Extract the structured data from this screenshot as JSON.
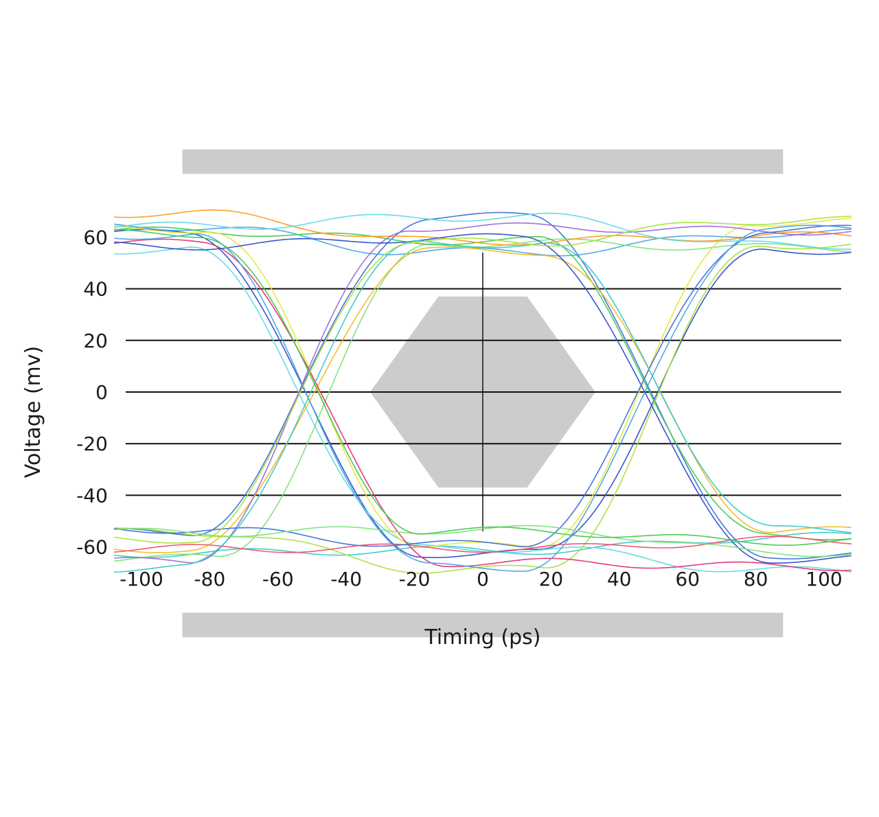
{
  "chart_data": {
    "type": "line",
    "subtype": "eye-diagram",
    "title": "",
    "xlabel": "Timing (ps)",
    "ylabel": "Voltage (mv)",
    "xlim": [
      -108,
      108
    ],
    "ylim": [
      -70,
      72
    ],
    "x_ticks": [
      -100,
      -80,
      -60,
      -40,
      -20,
      0,
      20,
      40,
      60,
      80,
      100
    ],
    "x_tick_labels": [
      "-100",
      "-80",
      "-60",
      "-40",
      "-20",
      "0",
      "20",
      "40",
      "60",
      "80",
      "100"
    ],
    "y_ticks": [
      -60,
      -40,
      -20,
      0,
      20,
      40,
      60
    ],
    "y_tick_labels": [
      "-60",
      "-40",
      "-20",
      "0",
      "20",
      "40",
      "60"
    ],
    "gridlines_y": [
      -40,
      -20,
      0,
      20,
      40
    ],
    "grid": true,
    "legend": "none",
    "eye_crossings_ps": [
      -50,
      50
    ],
    "trace_high_level_mv": [
      53,
      70
    ],
    "trace_low_level_mv": [
      -53,
      -70
    ],
    "mask": {
      "color": "#cccccc",
      "center_hexagon": [
        [
          -33,
          0
        ],
        [
          -13,
          37
        ],
        [
          13,
          37
        ],
        [
          33,
          0
        ],
        [
          13,
          -37
        ],
        [
          -13,
          -37
        ]
      ],
      "upper_limit_band": {
        "x": [
          -88,
          88
        ],
        "y": [
          84.5,
          94
        ]
      },
      "lower_limit_band": {
        "x": [
          -88,
          88
        ],
        "y": [
          -85.5,
          -95
        ]
      }
    },
    "trace_colors": [
      "#2b4ec9",
      "#3c6fd8",
      "#4aa3e0",
      "#38c8c8",
      "#5fd9e6",
      "#7fe07a",
      "#45c850",
      "#a9e03a",
      "#e6e63a",
      "#f5b820",
      "#ff9a1a",
      "#f0506e",
      "#e53075",
      "#9a6adb"
    ]
  }
}
